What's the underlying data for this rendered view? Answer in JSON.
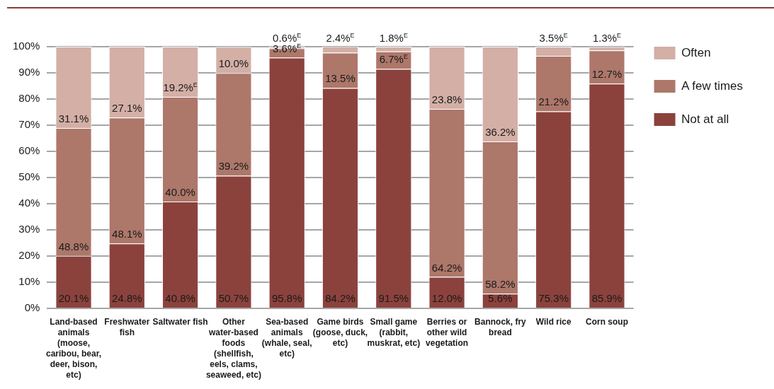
{
  "chart_data": {
    "type": "bar",
    "stacked": true,
    "categories": [
      "Land-based animals (moose, caribou, bear, deer, bison, etc)",
      "Freshwater fish",
      "Saltwater fish",
      "Other water-based foods (shellfish, eels, clams, seaweed, etc)",
      "Sea-based animals (whale, seal, etc)",
      "Game birds (goose, duck, etc)",
      "Small game (rabbit, muskrat, etc)",
      "Berries or other wild vegetation",
      "Bannock, fry bread",
      "Wild rice",
      "Corn soup"
    ],
    "series": [
      {
        "name": "Not at all",
        "color": "#8b423d",
        "values": [
          20.1,
          24.8,
          40.8,
          50.7,
          95.8,
          84.2,
          91.5,
          12.0,
          5.6,
          75.3,
          85.9
        ],
        "value_labels": [
          "20.1%",
          "24.8%",
          "40.8%",
          "50.7%",
          "95.8%",
          "84.2%",
          "91.5%",
          "12.0%",
          "5.6%",
          "75.3%",
          "85.9%"
        ]
      },
      {
        "name": "A few times",
        "color": "#ad776a",
        "values": [
          48.8,
          48.1,
          40.0,
          39.2,
          3.6,
          13.5,
          6.7,
          64.2,
          58.2,
          21.2,
          12.7
        ],
        "value_labels": [
          "48.8%",
          "48.1%",
          "40.0%",
          "39.2%",
          "3.6%$^{E}$",
          "13.5%",
          "6.7%$^{E}$",
          "64.2%",
          "58.2%",
          "21.2%",
          "12.7%"
        ]
      },
      {
        "name": "Often",
        "color": "#d3afa6",
        "values": [
          31.1,
          27.1,
          19.2,
          10.0,
          0.6,
          2.4,
          1.8,
          23.8,
          36.2,
          3.5,
          1.3
        ],
        "value_labels": [
          "31.1%",
          "27.1%",
          "19.2%$^{E}$",
          "10.0%",
          "0.6%$^{E}$",
          "2.4%$^{E}$",
          "1.8%$^{E}$",
          "23.8%",
          "36.2%",
          "3.5%$^{E}$",
          "1.3%$^{E}$"
        ]
      }
    ],
    "ylim": [
      0,
      100
    ],
    "yticks": [
      {
        "value": 0,
        "label": "0%"
      },
      {
        "value": 10,
        "label": "10%"
      },
      {
        "value": 20,
        "label": "20%"
      },
      {
        "value": 30,
        "label": "30%"
      },
      {
        "value": 40,
        "label": "40%"
      },
      {
        "value": 50,
        "label": "50%"
      },
      {
        "value": 60,
        "label": "60%"
      },
      {
        "value": 70,
        "label": "70%"
      },
      {
        "value": 80,
        "label": "80%"
      },
      {
        "value": 90,
        "label": "90%"
      },
      {
        "value": 100,
        "label": "100%"
      }
    ],
    "grid": "y",
    "legend": "top right"
  }
}
